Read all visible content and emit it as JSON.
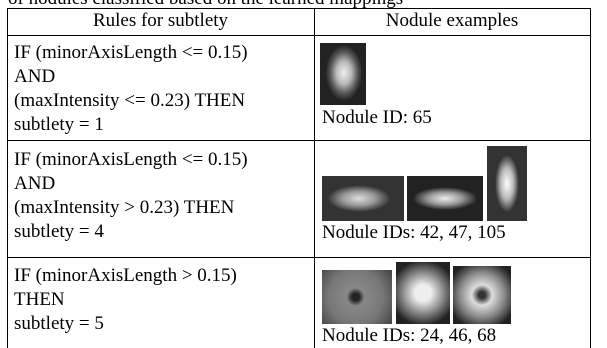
{
  "caption": "of nodules classified based on the learned mappings",
  "table": {
    "headers": [
      "Rules for subtlety",
      "Nodule examples"
    ],
    "rows": [
      {
        "rule": [
          "IF (minorAxisLength <= 0.15)",
          "AND",
          "(maxIntensity <= 0.23) THEN",
          "subtlety =  1"
        ],
        "caption": "Nodule ID: 65"
      },
      {
        "rule": [
          "IF (minorAxisLength <= 0.15)",
          "AND",
          "(maxIntensity > 0.23) THEN",
          "subtlety =  4"
        ],
        "caption": "Nodule IDs: 42, 47, 105"
      },
      {
        "rule": [
          "IF  (minorAxisLength  > 0.15)",
          "THEN",
          "subtlety =  5"
        ],
        "caption": "Nodule IDs: 24, 46, 68"
      }
    ]
  }
}
